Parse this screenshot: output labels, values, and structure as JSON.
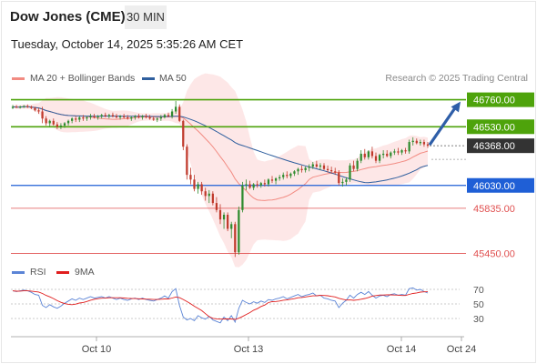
{
  "header": {
    "title": "Dow Jones (CME)",
    "timeframe": "30 MIN",
    "timestamp": "Tuesday, October 14, 2025 5:35:26 AM CET"
  },
  "legend": {
    "bollinger": {
      "label": "MA 20 + Bollinger Bands",
      "color": "#f28b82"
    },
    "ma50": {
      "label": "MA 50",
      "color": "#2f5f9e"
    },
    "credit": "Research © 2025 Trading Central"
  },
  "rsi_legend": {
    "rsi": {
      "label": "RSI",
      "color": "#5b84d6"
    },
    "ma9": {
      "label": "9MA",
      "color": "#e01e1e"
    }
  },
  "colors": {
    "bull": "#2e8b2e",
    "bear": "#c0392b",
    "resistance": "#4ea30b",
    "support": "#1f5fd6",
    "support_red": "#e05050",
    "arrow": "#2e5ea8",
    "band_fill": "#fde3e3",
    "current": "#333333"
  },
  "chart_data": {
    "type": "candlestick",
    "ylim": [
      45400,
      46850
    ],
    "x_ticks": [
      "Oct 10",
      "Oct 13",
      "Oct 14",
      "Oct 24"
    ],
    "levels": [
      {
        "value": 46760.0,
        "label": "46760.00",
        "style": "resistance"
      },
      {
        "value": 46530.0,
        "label": "46530.00",
        "style": "resistance"
      },
      {
        "value": 46368.0,
        "label": "46368.00",
        "style": "current"
      },
      {
        "value": 46030.0,
        "label": "46030.00",
        "style": "support"
      },
      {
        "value": 45835.0,
        "label": "45835.00",
        "style": "support_red"
      },
      {
        "value": 45450.0,
        "label": "45450.00",
        "style": "support_red"
      }
    ],
    "candles": [
      [
        46690,
        46715,
        46680,
        46700
      ],
      [
        46700,
        46715,
        46690,
        46695
      ],
      [
        46695,
        46710,
        46685,
        46700
      ],
      [
        46700,
        46715,
        46690,
        46705
      ],
      [
        46705,
        46720,
        46690,
        46700
      ],
      [
        46700,
        46710,
        46680,
        46690
      ],
      [
        46690,
        46700,
        46660,
        46670
      ],
      [
        46670,
        46690,
        46640,
        46660
      ],
      [
        46660,
        46700,
        46560,
        46600
      ],
      [
        46600,
        46620,
        46540,
        46560
      ],
      [
        46560,
        46590,
        46530,
        46580
      ],
      [
        46580,
        46600,
        46540,
        46550
      ],
      [
        46550,
        46570,
        46510,
        46530
      ],
      [
        46530,
        46560,
        46510,
        46540
      ],
      [
        46540,
        46570,
        46520,
        46560
      ],
      [
        46560,
        46590,
        46540,
        46580
      ],
      [
        46580,
        46610,
        46560,
        46600
      ],
      [
        46600,
        46620,
        46570,
        46590
      ],
      [
        46590,
        46620,
        46570,
        46610
      ],
      [
        46610,
        46630,
        46580,
        46600
      ],
      [
        46600,
        46620,
        46580,
        46610
      ],
      [
        46610,
        46640,
        46590,
        46620
      ],
      [
        46620,
        46640,
        46600,
        46610
      ],
      [
        46610,
        46630,
        46590,
        46620
      ],
      [
        46620,
        46640,
        46600,
        46630
      ],
      [
        46630,
        46650,
        46610,
        46620
      ],
      [
        46620,
        46640,
        46600,
        46630
      ],
      [
        46630,
        46650,
        46610,
        46620
      ],
      [
        46620,
        46640,
        46600,
        46610
      ],
      [
        46610,
        46630,
        46590,
        46620
      ],
      [
        46620,
        46640,
        46600,
        46610
      ],
      [
        46610,
        46630,
        46590,
        46600
      ],
      [
        46600,
        46620,
        46580,
        46610
      ],
      [
        46610,
        46630,
        46590,
        46620
      ],
      [
        46620,
        46640,
        46600,
        46610
      ],
      [
        46610,
        46630,
        46590,
        46620
      ],
      [
        46620,
        46640,
        46600,
        46610
      ],
      [
        46610,
        46630,
        46590,
        46600
      ],
      [
        46600,
        46620,
        46580,
        46590
      ],
      [
        46590,
        46610,
        46570,
        46600
      ],
      [
        46600,
        46630,
        46580,
        46610
      ],
      [
        46610,
        46640,
        46600,
        46630
      ],
      [
        46630,
        46650,
        46610,
        46620
      ],
      [
        46620,
        46680,
        46600,
        46660
      ],
      [
        46660,
        46750,
        46640,
        46700
      ],
      [
        46700,
        46720,
        46570,
        46580
      ],
      [
        46580,
        46590,
        46330,
        46360
      ],
      [
        46360,
        46380,
        46080,
        46120
      ],
      [
        46120,
        46180,
        46040,
        46080
      ],
      [
        46080,
        46120,
        45980,
        46000
      ],
      [
        46000,
        46060,
        45960,
        46040
      ],
      [
        46040,
        46060,
        45950,
        45980
      ],
      [
        45980,
        46010,
        45900,
        45940
      ],
      [
        45940,
        45990,
        45880,
        45960
      ],
      [
        45960,
        45980,
        45860,
        45880
      ],
      [
        45880,
        45930,
        45800,
        45820
      ],
      [
        45820,
        45870,
        45700,
        45740
      ],
      [
        45740,
        45800,
        45660,
        45780
      ],
      [
        45780,
        45800,
        45640,
        45660
      ],
      [
        45660,
        45720,
        45580,
        45700
      ],
      [
        45700,
        45720,
        45420,
        45460
      ],
      [
        45460,
        45850,
        45440,
        45820
      ],
      [
        45820,
        46060,
        45800,
        46030
      ],
      [
        46030,
        46080,
        45990,
        46040
      ],
      [
        46040,
        46070,
        46000,
        46010
      ],
      [
        46010,
        46050,
        45990,
        46040
      ],
      [
        46040,
        46070,
        46010,
        46030
      ],
      [
        46030,
        46060,
        46010,
        46050
      ],
      [
        46050,
        46080,
        46020,
        46040
      ],
      [
        46040,
        46090,
        46020,
        46080
      ],
      [
        46080,
        46110,
        46050,
        46070
      ],
      [
        46070,
        46100,
        46040,
        46090
      ],
      [
        46090,
        46120,
        46070,
        46100
      ],
      [
        46100,
        46140,
        46080,
        46120
      ],
      [
        46120,
        46150,
        46090,
        46110
      ],
      [
        46110,
        46140,
        46090,
        46130
      ],
      [
        46130,
        46160,
        46110,
        46150
      ],
      [
        46150,
        46180,
        46120,
        46170
      ],
      [
        46170,
        46200,
        46140,
        46160
      ],
      [
        46160,
        46190,
        46140,
        46180
      ],
      [
        46180,
        46210,
        46150,
        46190
      ],
      [
        46190,
        46230,
        46170,
        46210
      ],
      [
        46210,
        46240,
        46180,
        46190
      ],
      [
        46190,
        46220,
        46160,
        46200
      ],
      [
        46200,
        46220,
        46160,
        46170
      ],
      [
        46170,
        46200,
        46140,
        46160
      ],
      [
        46160,
        46190,
        46130,
        46150
      ],
      [
        46150,
        46180,
        46120,
        46140
      ],
      [
        46140,
        46160,
        46030,
        46050
      ],
      [
        46050,
        46090,
        46020,
        46060
      ],
      [
        46060,
        46100,
        46030,
        46080
      ],
      [
        46080,
        46220,
        46060,
        46200
      ],
      [
        46200,
        46240,
        46150,
        46170
      ],
      [
        46170,
        46260,
        46150,
        46240
      ],
      [
        46240,
        46330,
        46220,
        46300
      ],
      [
        46300,
        46340,
        46250,
        46270
      ],
      [
        46270,
        46330,
        46250,
        46320
      ],
      [
        46320,
        46360,
        46260,
        46280
      ],
      [
        46280,
        46310,
        46220,
        46240
      ],
      [
        46240,
        46300,
        46220,
        46290
      ],
      [
        46290,
        46330,
        46260,
        46300
      ],
      [
        46300,
        46330,
        46270,
        46280
      ],
      [
        46280,
        46320,
        46260,
        46310
      ],
      [
        46310,
        46340,
        46290,
        46320
      ],
      [
        46320,
        46350,
        46290,
        46310
      ],
      [
        46310,
        46340,
        46290,
        46330
      ],
      [
        46330,
        46350,
        46300,
        46320
      ],
      [
        46320,
        46420,
        46300,
        46400
      ],
      [
        46400,
        46440,
        46370,
        46410
      ],
      [
        46410,
        46430,
        46380,
        46390
      ],
      [
        46390,
        46420,
        46370,
        46400
      ],
      [
        46400,
        46420,
        46360,
        46380
      ],
      [
        46380,
        46400,
        46350,
        46368
      ]
    ],
    "rsi": [
      68,
      67,
      68,
      69,
      68,
      66,
      63,
      62,
      48,
      45,
      49,
      46,
      44,
      47,
      51,
      54,
      57,
      55,
      58,
      56,
      58,
      60,
      58,
      59,
      60,
      58,
      60,
      58,
      56,
      58,
      56,
      55,
      57,
      58,
      56,
      58,
      56,
      55,
      54,
      56,
      58,
      61,
      58,
      67,
      71,
      48,
      32,
      28,
      30,
      27,
      34,
      31,
      29,
      33,
      28,
      26,
      24,
      32,
      27,
      34,
      25,
      44,
      55,
      52,
      50,
      53,
      51,
      54,
      52,
      56,
      55,
      57,
      58,
      60,
      57,
      59,
      61,
      63,
      60,
      62,
      63,
      65,
      61,
      62,
      58,
      57,
      55,
      54,
      45,
      51,
      55,
      62,
      58,
      63,
      66,
      63,
      67,
      62,
      58,
      61,
      62,
      60,
      63,
      64,
      62,
      63,
      62,
      71,
      72,
      69,
      70,
      67,
      65
    ],
    "rsi_ylim": [
      10,
      80
    ],
    "rsi_ticks": [
      70,
      50,
      30
    ]
  }
}
